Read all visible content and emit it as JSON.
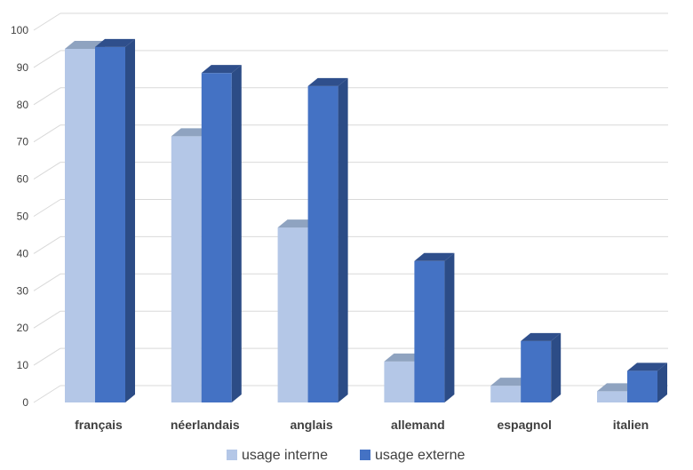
{
  "chart_data": {
    "type": "bar",
    "categories": [
      "français",
      "néerlandais",
      "anglais",
      "allemand",
      "espagnol",
      "italien"
    ],
    "series": [
      {
        "name": "usage interne",
        "values": [
          95,
          71.5,
          47,
          11,
          4.5,
          3
        ]
      },
      {
        "name": "usage externe",
        "values": [
          95.5,
          88.5,
          85,
          38,
          16.5,
          8.5
        ]
      }
    ],
    "ylim": [
      0,
      100
    ],
    "yticks": [
      "0",
      "10",
      "20",
      "30",
      "40",
      "50",
      "60",
      "70",
      "80",
      "90",
      "100"
    ],
    "grid": true,
    "legend_position": "bottom",
    "style": "3d clustered column",
    "colors": {
      "usage interne": {
        "front": "#b4c7e7",
        "side": "#8ea6cc",
        "top": "#8fa3c0"
      },
      "usage externe": {
        "front": "#4472c4",
        "side": "#2c4c86",
        "top": "#2f4f8c"
      }
    }
  }
}
